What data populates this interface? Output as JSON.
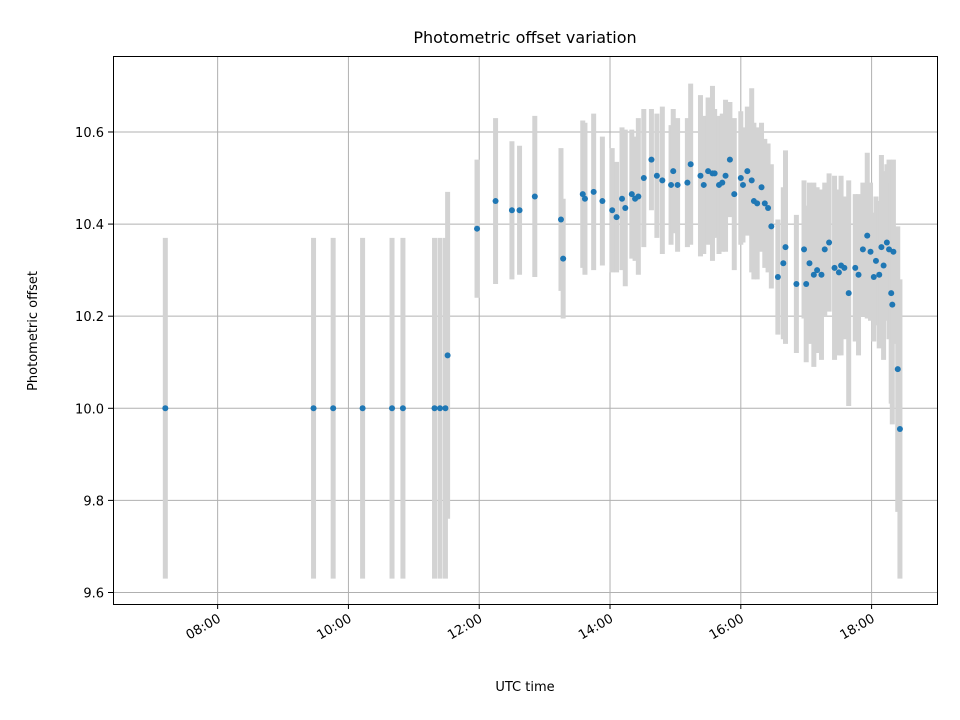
{
  "chart_data": {
    "type": "scatter",
    "title": "Photometric offset variation",
    "xlabel": "UTC time",
    "ylabel": "Photometric offset",
    "x_ticks": [
      "08:00",
      "10:00",
      "12:00",
      "14:00",
      "16:00",
      "18:00"
    ],
    "x_tick_hours": [
      8,
      10,
      12,
      14,
      16,
      18
    ],
    "x_range_hours": [
      6.4,
      19.0
    ],
    "ylim": [
      9.575,
      10.765
    ],
    "y_ticks": [
      9.6,
      9.8,
      10.0,
      10.2,
      10.4,
      10.6
    ],
    "y_tick_labels": [
      "9.6",
      "9.8",
      "10.0",
      "10.2",
      "10.4",
      "10.6"
    ],
    "grid": true,
    "x_tick_rotation": "rotated",
    "colors": {
      "marker": "#1f77b4",
      "errorbar": "#d3d3d3",
      "grid": "#b0b0b0"
    },
    "series": [
      {
        "x": [
          "07:12",
          "09:28",
          "09:46",
          "10:13",
          "10:40",
          "10:50",
          "11:19",
          "11:24",
          "11:29",
          "11:31",
          "11:58",
          "12:15",
          "12:30",
          "12:37",
          "12:51",
          "13:15",
          "13:17",
          "13:35",
          "13:37",
          "13:45",
          "13:53",
          "14:02",
          "14:06",
          "14:11",
          "14:14",
          "14:20",
          "14:23",
          "14:26",
          "14:31",
          "14:38",
          "14:43",
          "14:48",
          "14:56",
          "14:58",
          "15:02",
          "15:11",
          "15:14",
          "15:23",
          "15:26",
          "15:30",
          "15:34",
          "15:36",
          "15:40",
          "15:43",
          "15:46",
          "15:50",
          "15:54",
          "16:00",
          "16:02",
          "16:06",
          "16:10",
          "16:12",
          "16:15",
          "16:19",
          "16:22",
          "16:25",
          "16:28",
          "16:34",
          "16:39",
          "16:41",
          "16:51",
          "16:58",
          "17:00",
          "17:03",
          "17:07",
          "17:10",
          "17:14",
          "17:17",
          "17:21",
          "17:26",
          "17:30",
          "17:32",
          "17:35",
          "17:39",
          "17:45",
          "17:48",
          "17:52",
          "17:56",
          "17:59",
          "18:02",
          "18:04",
          "18:07",
          "18:09",
          "18:11",
          "18:14",
          "18:16",
          "18:18",
          "18:19",
          "18:20",
          "18:24",
          "18:26"
        ],
        "y": [
          10.0,
          10.0,
          10.0,
          10.0,
          10.0,
          10.0,
          10.0,
          10.0,
          10.0,
          10.115,
          10.39,
          10.45,
          10.43,
          10.43,
          10.46,
          10.41,
          10.325,
          10.465,
          10.455,
          10.47,
          10.45,
          10.43,
          10.415,
          10.455,
          10.435,
          10.465,
          10.455,
          10.46,
          10.5,
          10.54,
          10.505,
          10.495,
          10.485,
          10.515,
          10.485,
          10.49,
          10.53,
          10.505,
          10.485,
          10.515,
          10.51,
          10.51,
          10.485,
          10.49,
          10.505,
          10.54,
          10.465,
          10.5,
          10.485,
          10.515,
          10.495,
          10.45,
          10.445,
          10.48,
          10.445,
          10.435,
          10.395,
          10.285,
          10.315,
          10.35,
          10.27,
          10.345,
          10.27,
          10.315,
          10.29,
          10.3,
          10.29,
          10.345,
          10.36,
          10.305,
          10.295,
          10.31,
          10.305,
          10.25,
          10.305,
          10.29,
          10.345,
          10.375,
          10.34,
          10.285,
          10.32,
          10.29,
          10.35,
          10.31,
          10.36,
          10.345,
          10.25,
          10.225,
          10.34,
          10.085,
          9.955
        ],
        "yerr": [
          0.37,
          0.37,
          0.37,
          0.37,
          0.37,
          0.37,
          0.37,
          0.37,
          0.37,
          0.355,
          0.15,
          0.18,
          0.15,
          0.14,
          0.175,
          0.155,
          0.13,
          0.16,
          0.165,
          0.17,
          0.14,
          0.135,
          0.12,
          0.155,
          0.17,
          0.14,
          0.135,
          0.17,
          0.15,
          0.11,
          0.135,
          0.16,
          0.13,
          0.135,
          0.145,
          0.14,
          0.175,
          0.175,
          0.15,
          0.16,
          0.19,
          0.14,
          0.15,
          0.15,
          0.165,
          0.125,
          0.165,
          0.145,
          0.125,
          0.14,
          0.2,
          0.17,
          0.165,
          0.14,
          0.14,
          0.14,
          0.135,
          0.125,
          0.165,
          0.21,
          0.15,
          0.15,
          0.17,
          0.175,
          0.2,
          0.18,
          0.185,
          0.145,
          0.15,
          0.2,
          0.18,
          0.195,
          0.155,
          0.245,
          0.16,
          0.175,
          0.145,
          0.18,
          0.15,
          0.14,
          0.14,
          0.16,
          0.2,
          0.205,
          0.17,
          0.195,
          0.24,
          0.26,
          0.2,
          0.31,
          0.325
        ]
      }
    ]
  }
}
